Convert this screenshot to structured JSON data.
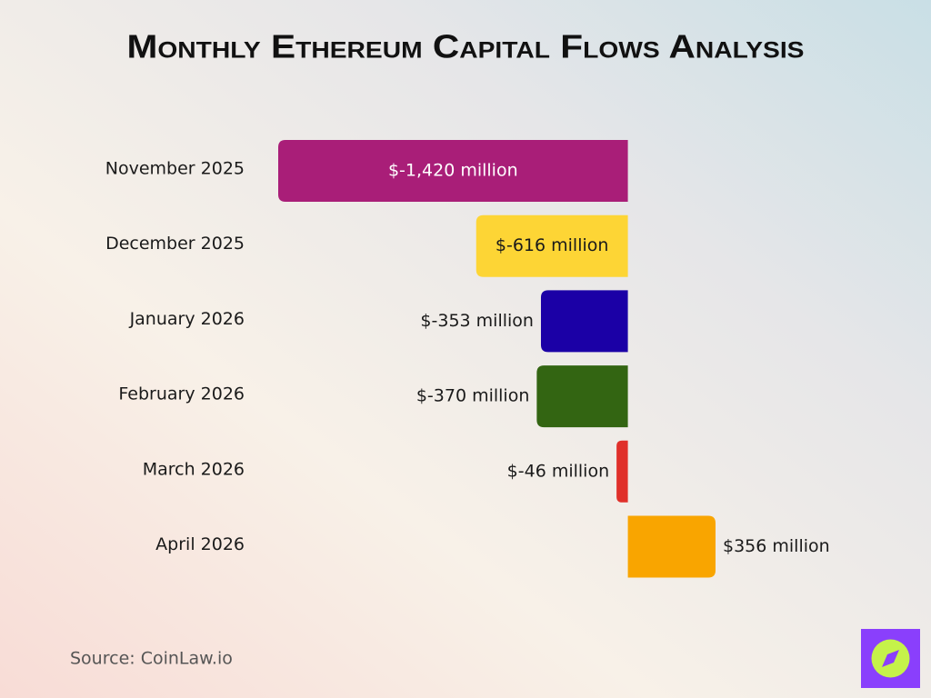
{
  "chart_data": {
    "type": "bar",
    "orientation": "horizontal",
    "title": "Monthly Ethereum Capital Flows Analysis",
    "categories": [
      "November 2025",
      "December 2025",
      "January 2026",
      "February 2026",
      "March 2026",
      "April 2026"
    ],
    "values": [
      -1420,
      -616,
      -353,
      -370,
      -46,
      356
    ],
    "value_labels": [
      "$-1,420 million",
      "$-616 million",
      "$-353 million",
      "$-370 million",
      "$-46 million",
      "$356 million"
    ],
    "colors": [
      "#a91e78",
      "#fdd535",
      "#1b00a6",
      "#336512",
      "#e0302a",
      "#f9a500"
    ],
    "source": "Source: CoinLaw.io"
  }
}
